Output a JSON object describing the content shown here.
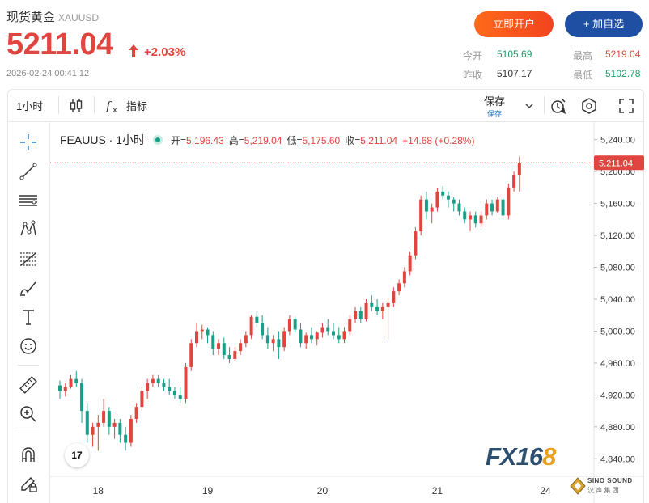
{
  "header": {
    "title": "现货黄金",
    "symbol": "XAUUSD",
    "price": "5211.04",
    "change": "+2.03%",
    "timestamp": "2026-02-24 00:41:12",
    "open_account_label": "立即开户",
    "add_watchlist_label": "+ 加自选",
    "stats": {
      "open_label": "今开",
      "open_value": "5105.69",
      "high_label": "最高",
      "high_value": "5219.04",
      "prev_close_label": "昨收",
      "prev_close_value": "5107.17",
      "low_label": "最低",
      "low_value": "5102.78"
    }
  },
  "toolbar": {
    "interval": "1小时",
    "indicators_label": "指标",
    "save_label": "保存",
    "save_sublabel": "保存"
  },
  "legend": {
    "name": "FEAUUS · 1小时",
    "open_label": "开=",
    "open_value": "5,196.43",
    "high_label": "高=",
    "high_value": "5,219.04",
    "low_label": "低=",
    "low_value": "5,175.60",
    "close_label": "收=",
    "close_value": "5,211.04",
    "change": "+14.68 (+0.28%)"
  },
  "watermarks": {
    "tv": "17",
    "fx_main": "FX16",
    "fx_tail": "8",
    "sino_top": "SINO SOUND",
    "sino_bottom": "汉 声 集 团"
  },
  "icons": {
    "left_toolbar": [
      "crosshair-icon",
      "trendline-icon",
      "horizontal-lines-icon",
      "pattern-icon",
      "fib-icon",
      "brush-icon",
      "text-icon",
      "emoji-icon",
      "ruler-icon",
      "zoom-in-icon",
      "magnet-icon",
      "lock-pencil-icon"
    ],
    "top_toolbar": [
      "candlestick-icon",
      "fx-indicator-icon",
      "chevron-down-icon",
      "alert-icon",
      "settings-hex-icon",
      "fullscreen-icon"
    ]
  },
  "colors": {
    "up": "#e0453f",
    "down": "#1b9e88",
    "price_line": "#e0453f",
    "accent_blue": "#1f4fa3",
    "accent_orange": "#f2431f"
  },
  "chart_data": {
    "type": "candlestick",
    "y_ticks": [
      4840,
      4880,
      4920,
      4960,
      5000,
      5040,
      5080,
      5120,
      5160,
      5200,
      5240
    ],
    "y_tick_labels": [
      "4,840.00",
      "4,880.00",
      "4,920.00",
      "4,960.00",
      "5,000.00",
      "5,040.00",
      "5,080.00",
      "5,120.00",
      "5,160.00",
      "5,200.00",
      "5,240.00"
    ],
    "x_tick_labels": [
      "18",
      "19",
      "20",
      "21",
      "24"
    ],
    "ylim": [
      4818,
      5262
    ],
    "current_price": 5211.04,
    "current_price_label": "5,211.04",
    "ohlc": [
      [
        4932,
        4938,
        4915,
        4925
      ],
      [
        4925,
        4935,
        4918,
        4930
      ],
      [
        4930,
        4945,
        4928,
        4940
      ],
      [
        4940,
        4950,
        4930,
        4935
      ],
      [
        4935,
        4940,
        4885,
        4900
      ],
      [
        4900,
        4910,
        4860,
        4870
      ],
      [
        4870,
        4885,
        4855,
        4880
      ],
      [
        4880,
        4895,
        4850,
        4885
      ],
      [
        4885,
        4915,
        4880,
        4900
      ],
      [
        4900,
        4905,
        4870,
        4880
      ],
      [
        4880,
        4890,
        4865,
        4885
      ],
      [
        4885,
        4890,
        4860,
        4870
      ],
      [
        4870,
        4880,
        4850,
        4860
      ],
      [
        4860,
        4895,
        4855,
        4890
      ],
      [
        4890,
        4910,
        4885,
        4905
      ],
      [
        4905,
        4930,
        4900,
        4925
      ],
      [
        4925,
        4940,
        4915,
        4935
      ],
      [
        4935,
        4945,
        4930,
        4940
      ],
      [
        4940,
        4945,
        4930,
        4935
      ],
      [
        4935,
        4940,
        4925,
        4930
      ],
      [
        4930,
        4940,
        4920,
        4925
      ],
      [
        4925,
        4930,
        4915,
        4920
      ],
      [
        4920,
        4930,
        4910,
        4915
      ],
      [
        4915,
        4960,
        4910,
        4955
      ],
      [
        4955,
        4990,
        4950,
        4985
      ],
      [
        4985,
        5010,
        4980,
        5000
      ],
      [
        5000,
        5008,
        4990,
        5002
      ],
      [
        5002,
        5005,
        4985,
        4995
      ],
      [
        4995,
        5000,
        4970,
        4978
      ],
      [
        4978,
        4990,
        4970,
        4985
      ],
      [
        4985,
        4992,
        4965,
        4970
      ],
      [
        4970,
        4980,
        4960,
        4965
      ],
      [
        4965,
        4980,
        4962,
        4975
      ],
      [
        4975,
        4990,
        4970,
        4985
      ],
      [
        4985,
        5000,
        4980,
        4995
      ],
      [
        4995,
        5020,
        4990,
        5018
      ],
      [
        5018,
        5025,
        5005,
        5010
      ],
      [
        5010,
        5020,
        4990,
        4995
      ],
      [
        4995,
        5005,
        4978,
        4985
      ],
      [
        4985,
        4995,
        4975,
        4990
      ],
      [
        4990,
        5000,
        4965,
        4980
      ],
      [
        4980,
        5005,
        4975,
        5000
      ],
      [
        5000,
        5020,
        4995,
        5015
      ],
      [
        5015,
        5018,
        4998,
        5002
      ],
      [
        5002,
        5010,
        4980,
        4985
      ],
      [
        4985,
        4998,
        4978,
        4995
      ],
      [
        4995,
        5005,
        4985,
        4990
      ],
      [
        4990,
        5000,
        4982,
        4998
      ],
      [
        4998,
        5010,
        4992,
        5005
      ],
      [
        5005,
        5015,
        4995,
        5000
      ],
      [
        5000,
        5010,
        4990,
        4995
      ],
      [
        4995,
        5005,
        4985,
        4990
      ],
      [
        4990,
        5005,
        4985,
        5000
      ],
      [
        5000,
        5020,
        4995,
        5015
      ],
      [
        5015,
        5030,
        5010,
        5025
      ],
      [
        5025,
        5030,
        5010,
        5015
      ],
      [
        5015,
        5040,
        5012,
        5035
      ],
      [
        5035,
        5045,
        5025,
        5030
      ],
      [
        5030,
        5040,
        5020,
        5025
      ],
      [
        5025,
        5035,
        5015,
        5030
      ],
      [
        5030,
        5042,
        4990,
        5035
      ],
      [
        5035,
        5055,
        5030,
        5050
      ],
      [
        5050,
        5065,
        5045,
        5060
      ],
      [
        5060,
        5080,
        5055,
        5075
      ],
      [
        5075,
        5100,
        5070,
        5095
      ],
      [
        5095,
        5130,
        5090,
        5125
      ],
      [
        5125,
        5170,
        5120,
        5165
      ],
      [
        5165,
        5175,
        5140,
        5150
      ],
      [
        5150,
        5160,
        5135,
        5155
      ],
      [
        5155,
        5180,
        5150,
        5175
      ],
      [
        5175,
        5182,
        5165,
        5170
      ],
      [
        5170,
        5175,
        5155,
        5165
      ],
      [
        5165,
        5168,
        5150,
        5160
      ],
      [
        5160,
        5165,
        5145,
        5150
      ],
      [
        5150,
        5155,
        5135,
        5140
      ],
      [
        5140,
        5150,
        5125,
        5145
      ],
      [
        5145,
        5150,
        5130,
        5135
      ],
      [
        5135,
        5150,
        5130,
        5145
      ],
      [
        5145,
        5165,
        5140,
        5160
      ],
      [
        5160,
        5165,
        5145,
        5150
      ],
      [
        5150,
        5168,
        5148,
        5165
      ],
      [
        5165,
        5168,
        5140,
        5145
      ],
      [
        5145,
        5185,
        5140,
        5180
      ],
      [
        5180,
        5200,
        5175,
        5196
      ],
      [
        5196,
        5219,
        5175,
        5211
      ]
    ]
  }
}
